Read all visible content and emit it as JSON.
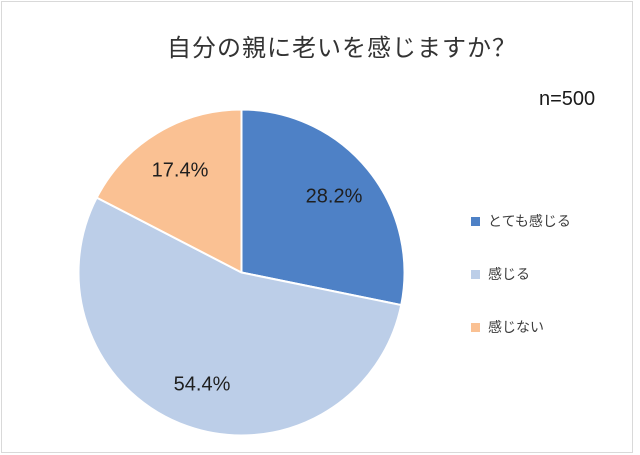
{
  "chart_data": {
    "type": "pie",
    "title": "自分の親に老いを感じますか？",
    "sample_size_label": "n=500",
    "categories": [
      "とても感じる",
      "感じる",
      "感じない"
    ],
    "values": [
      28.2,
      54.4,
      17.4
    ],
    "slice_labels": [
      "28.2%",
      "54.4%",
      "17.4%"
    ],
    "colors": [
      "#4e81c6",
      "#bccee8",
      "#fac193"
    ],
    "slice_border_color": "#ffffff",
    "start_angle": "top",
    "direction": "clockwise",
    "legend_position": "right",
    "grid": false
  }
}
